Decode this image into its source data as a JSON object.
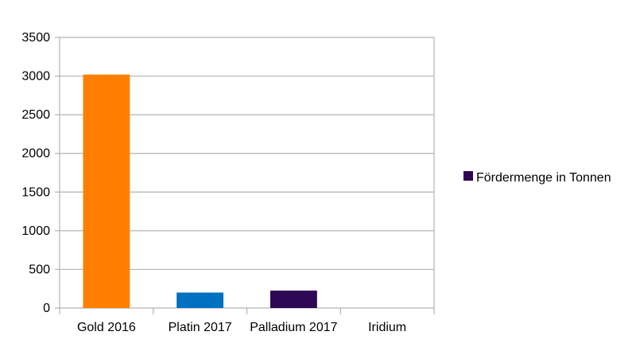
{
  "chart_data": {
    "type": "bar",
    "categories": [
      "Gold 2016",
      "Platin 2017",
      "Palladium 2017",
      "Iridium"
    ],
    "series": [
      {
        "name": "Fördermenge in Tonnen",
        "values": [
          3020,
          200,
          225,
          0
        ],
        "colors": [
          "#ff8000",
          "#0070c0",
          "#2e0854",
          "#999999"
        ]
      }
    ],
    "yticks": [
      0,
      500,
      1000,
      1500,
      2000,
      2500,
      3000,
      3500
    ],
    "ylim": [
      0,
      3500
    ],
    "grid": true,
    "legend_position": "right",
    "title": "",
    "xlabel": "",
    "ylabel": ""
  }
}
